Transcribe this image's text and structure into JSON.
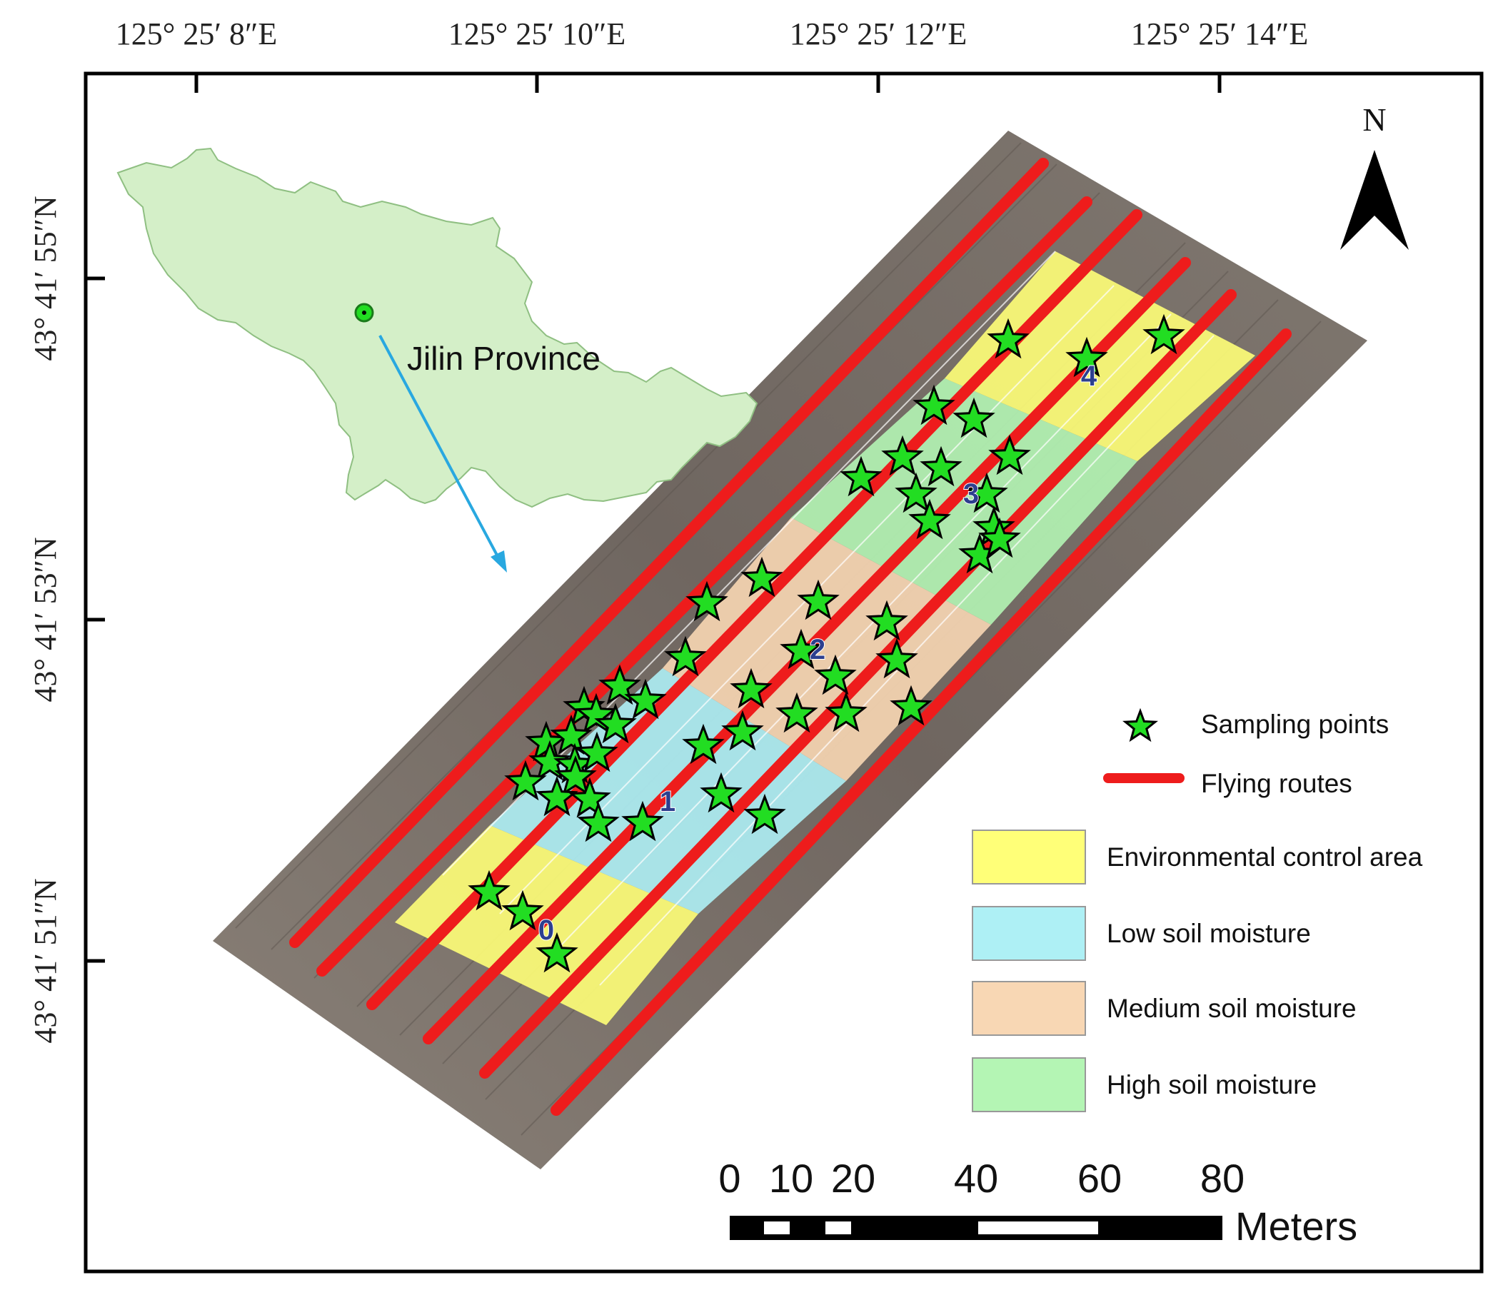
{
  "map": {
    "top_coordinate_labels": [
      "125°  25′ 8″E",
      "125°  25′ 10″E",
      "125°  25′ 12″E",
      "125°  25′ 14″E"
    ],
    "left_coordinate_labels": [
      "43°  41′ 55″N",
      "43°  41′ 53″N",
      "43°  41′ 51″N"
    ],
    "north_arrow_label": "N",
    "inset": {
      "region_label": "Jilin Province",
      "region_color": "#d4efc8",
      "arrow_color": "#29a8e0"
    },
    "zone_numbers": [
      "0",
      "1",
      "2",
      "3",
      "4"
    ],
    "scale_bar": {
      "ticks": [
        "0",
        "10",
        "20",
        "40",
        "60",
        "80"
      ],
      "unit": "Meters"
    },
    "legend": {
      "sampling_points": "Sampling points",
      "flying_routes": "Flying routes",
      "environmental_control_area": "Environmental control area",
      "low_soil_moisture": "Low soil moisture",
      "medium_soil_moisture": "Medium soil moisture",
      "high_soil_moisture": "High soil moisture"
    },
    "colors": {
      "environmental_control_area": "#ffff78",
      "low_soil_moisture": "#aef0f5",
      "medium_soil_moisture": "#f8d7b4",
      "high_soil_moisture": "#b4f5b4",
      "flying_route": "#ee1c1c",
      "sampling_point": "#22dd22",
      "field_background": "#7a7066"
    }
  }
}
